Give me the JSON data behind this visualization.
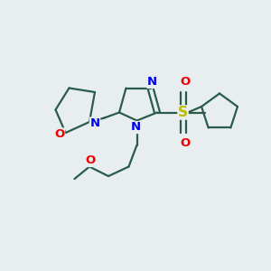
{
  "background_color": "#e8eef0",
  "bond_color": "#2a5c4a",
  "bond_width": 1.6,
  "n_color": "#0000ee",
  "o_color": "#ee0000",
  "s_color": "#bbbb00",
  "figsize": [
    3.0,
    3.0
  ],
  "dpi": 100,
  "xlim": [
    0,
    10
  ],
  "ylim": [
    0,
    10
  ]
}
